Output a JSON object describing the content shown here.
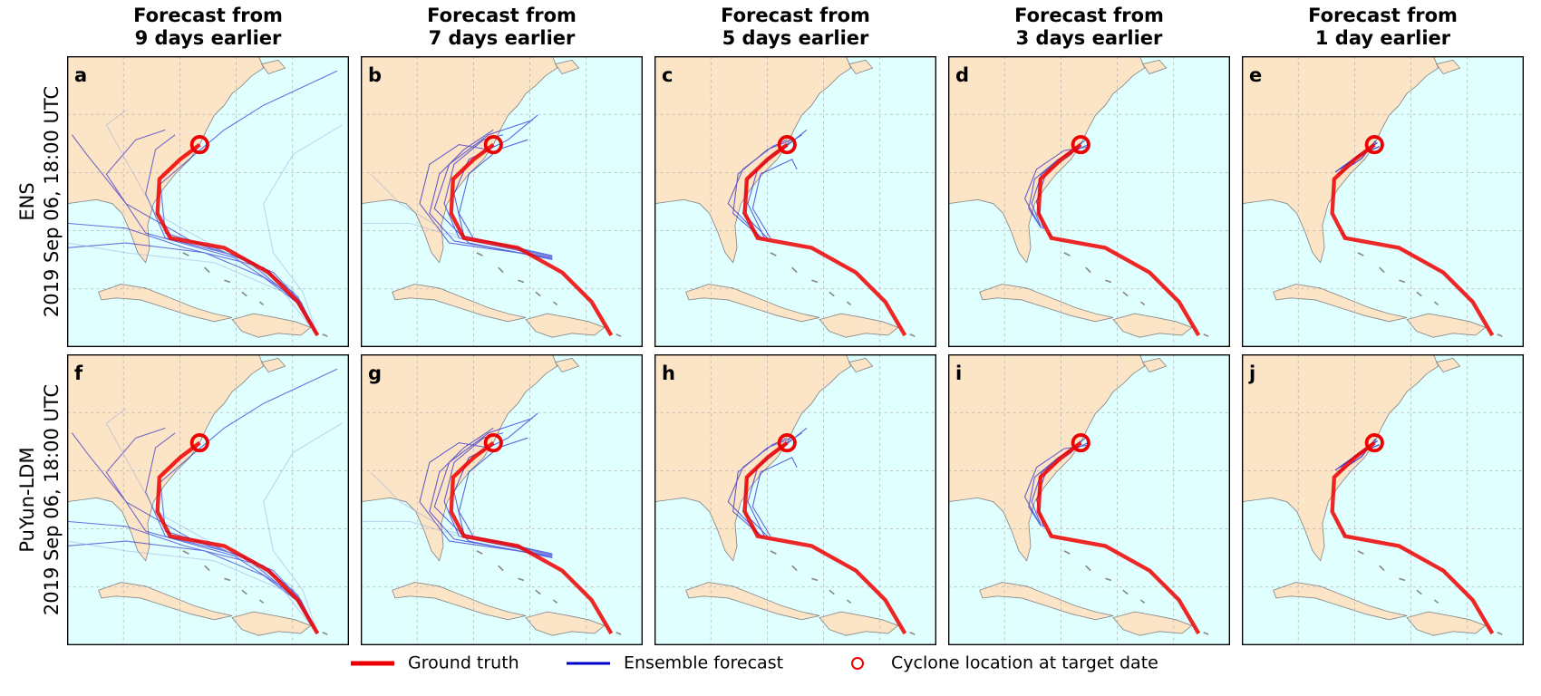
{
  "columns": [
    [
      "Forecast from",
      "9 days earlier"
    ],
    [
      "Forecast from",
      "7 days earlier"
    ],
    [
      "Forecast from",
      "5 days earlier"
    ],
    [
      "Forecast from",
      "3 days earlier"
    ],
    [
      "Forecast from",
      "1 day earlier"
    ]
  ],
  "rows": [
    {
      "model": "ENS",
      "date": "2019 Sep 06, 18:00 UTC"
    },
    {
      "model": "PuYun-LDM",
      "date": "2019 Sep 06, 18:00 UTC"
    }
  ],
  "panels": [
    [
      "a",
      "b",
      "c",
      "d",
      "e"
    ],
    [
      "f",
      "g",
      "h",
      "i",
      "j"
    ]
  ],
  "legend": [
    "Ground truth",
    "Ensemble forecast",
    "Cyclone location at target date"
  ]
}
